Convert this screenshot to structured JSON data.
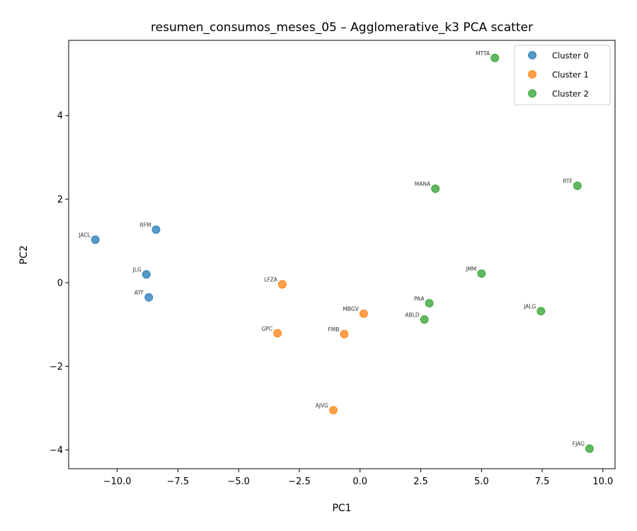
{
  "chart_data": {
    "type": "scatter",
    "title": "resumen_consumos_meses_05 – Agglomerative_k3 PCA scatter",
    "xlabel": "PC1",
    "ylabel": "PC2",
    "xlim": [
      -12.0,
      10.5
    ],
    "ylim": [
      -4.45,
      5.8
    ],
    "xticks": [
      -10.0,
      -7.5,
      -5.0,
      -2.5,
      0.0,
      2.5,
      5.0,
      7.5,
      10.0
    ],
    "xtick_labels": [
      "−10.0",
      "−7.5",
      "−5.0",
      "−2.5",
      "0.0",
      "2.5",
      "5.0",
      "7.5",
      "10.0"
    ],
    "yticks": [
      -4,
      -2,
      0,
      2,
      4
    ],
    "ytick_labels": [
      "−4",
      "−2",
      "0",
      "2",
      "4"
    ],
    "grid": false,
    "legend_position": "top-right",
    "series": [
      {
        "name": "Cluster 0",
        "color": "#1f77b4",
        "points": [
          {
            "label": "JACL",
            "x": -10.9,
            "y": 1.03
          },
          {
            "label": "RFM",
            "x": -8.4,
            "y": 1.27
          },
          {
            "label": "JLG",
            "x": -8.8,
            "y": 0.2
          },
          {
            "label": "ATF",
            "x": -8.7,
            "y": -0.35
          }
        ]
      },
      {
        "name": "Cluster 1",
        "color": "#ff7f0e",
        "points": [
          {
            "label": "LFZA",
            "x": -3.2,
            "y": -0.04
          },
          {
            "label": "MBGV",
            "x": 0.15,
            "y": -0.74
          },
          {
            "label": "GPC",
            "x": -3.4,
            "y": -1.21
          },
          {
            "label": "FMB",
            "x": -0.65,
            "y": -1.23
          },
          {
            "label": "AJVG",
            "x": -1.1,
            "y": -3.05
          }
        ]
      },
      {
        "name": "Cluster 2",
        "color": "#2ca02c",
        "points": [
          {
            "label": "MTTA",
            "x": 5.55,
            "y": 5.38
          },
          {
            "label": "MANA",
            "x": 3.1,
            "y": 2.25
          },
          {
            "label": "RTF",
            "x": 8.95,
            "y": 2.32
          },
          {
            "label": "JMM",
            "x": 5.0,
            "y": 0.22
          },
          {
            "label": "PAA",
            "x": 2.85,
            "y": -0.49
          },
          {
            "label": "ABLD",
            "x": 2.65,
            "y": -0.88
          },
          {
            "label": "JALG",
            "x": 7.45,
            "y": -0.68
          },
          {
            "label": "FJAG",
            "x": 9.45,
            "y": -3.97
          }
        ]
      }
    ]
  }
}
